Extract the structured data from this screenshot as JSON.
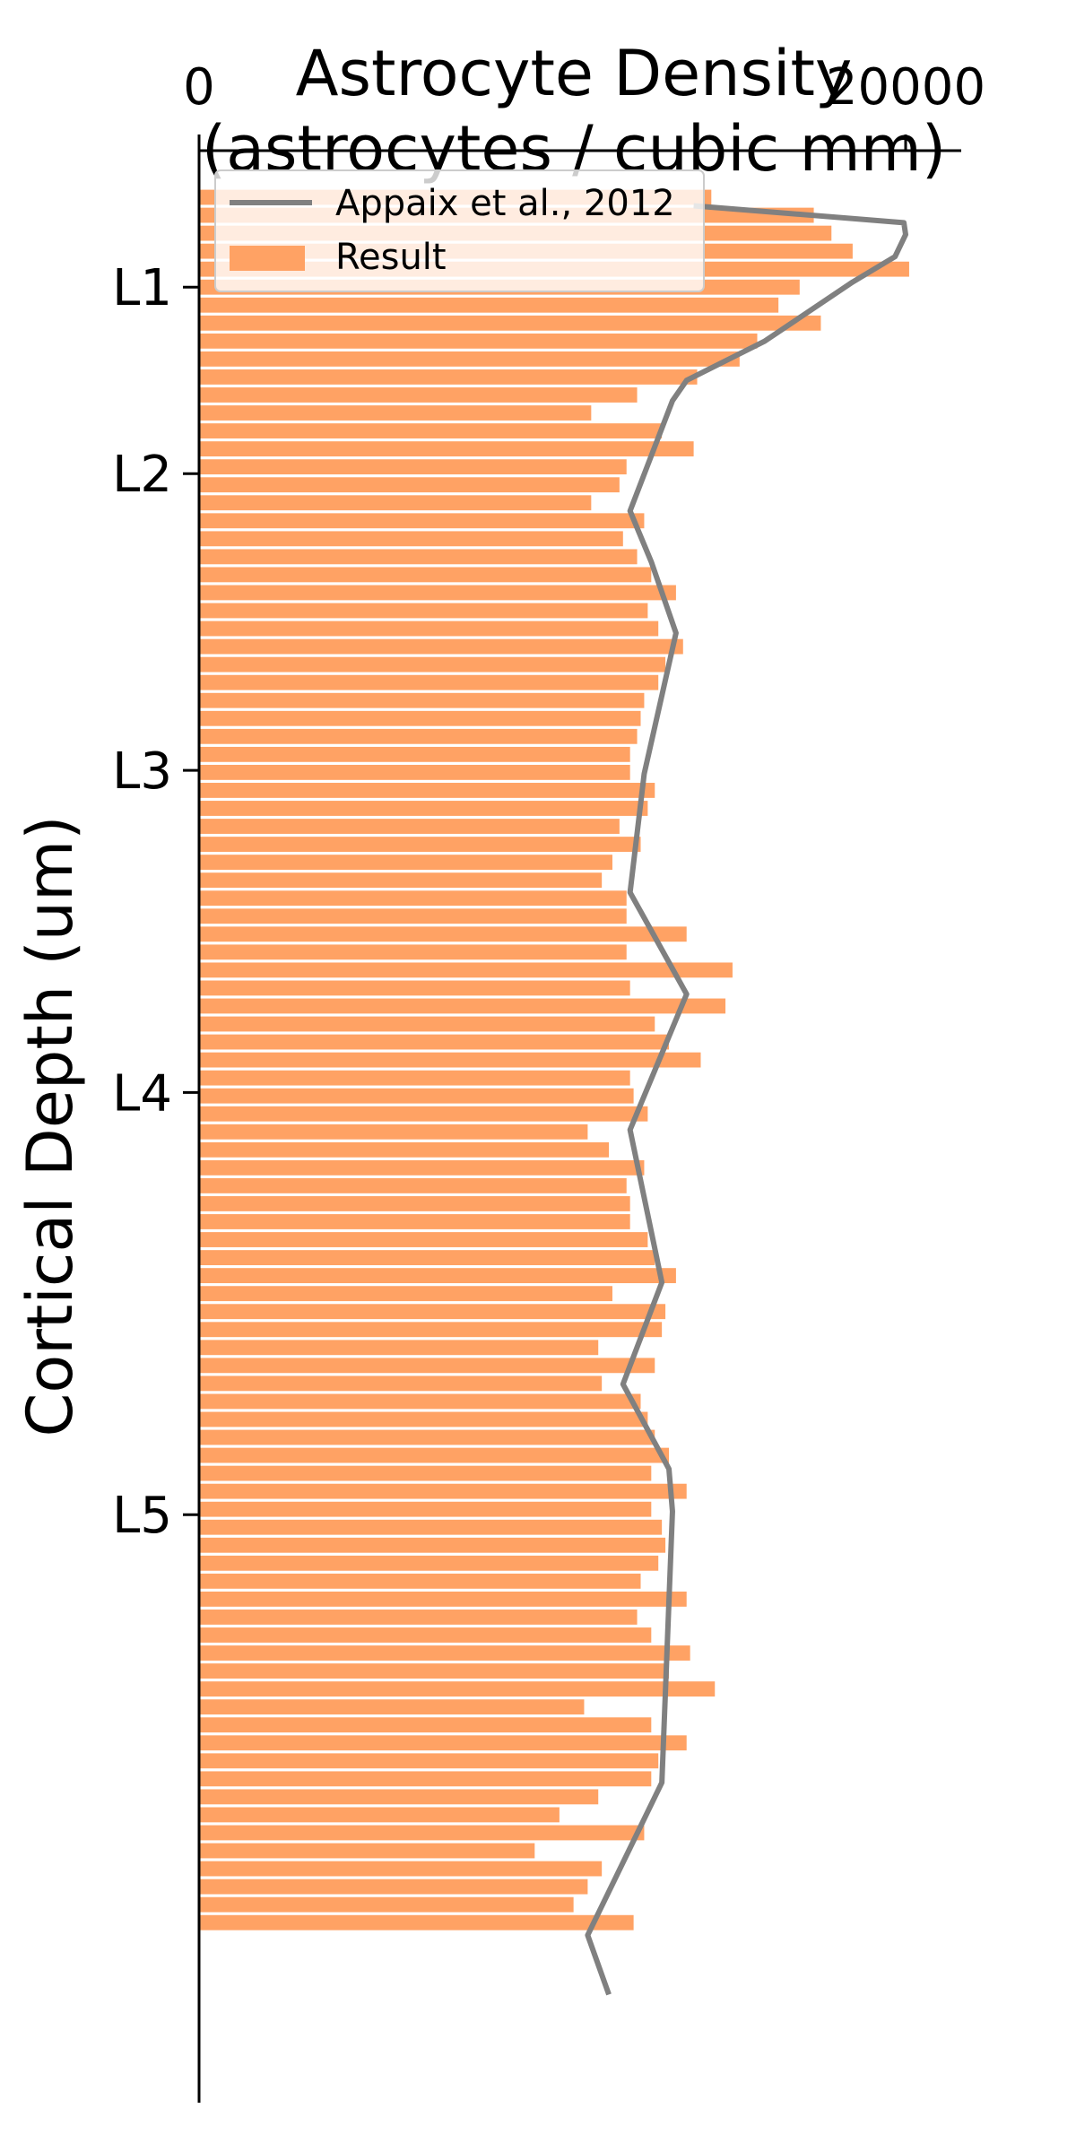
{
  "colors": {
    "bar": "#FFA264",
    "line": "#808080",
    "axis": "#000000"
  },
  "chart_data": {
    "type": "bar",
    "orientation": "horizontal",
    "title_line1": "Astrocyte Density",
    "title_line2": "(astrocytes / cubic mm)",
    "ylabel": "Cortical Depth (um)",
    "x_ticks": [
      {
        "value": 0,
        "label": "0"
      },
      {
        "value": 20000,
        "label": "20000"
      }
    ],
    "y_ticks": [
      {
        "value": 53,
        "label": "L1"
      },
      {
        "value": 163,
        "label": "L2"
      },
      {
        "value": 338,
        "label": "L3"
      },
      {
        "value": 528,
        "label": "L4"
      },
      {
        "value": 777,
        "label": "L5"
      }
    ],
    "xlim": [
      0,
      20000
    ],
    "ylim": [
      0,
      1100
    ],
    "y_inverted": true,
    "x_axis_position": "top",
    "legend_position": "top-left",
    "legend": [
      {
        "label": "Appaix et al., 2012",
        "kind": "line"
      },
      {
        "label": "Result",
        "kind": "patch"
      }
    ],
    "series": [
      {
        "name": "Result",
        "kind": "bar",
        "bar_height": 10.6,
        "depths": [
          0,
          10.6,
          21.2,
          31.8,
          42.4,
          53,
          63.6,
          74.2,
          84.8,
          95.4,
          106,
          116.6,
          127.2,
          137.8,
          148.4,
          159,
          169.6,
          180.2,
          190.8,
          201.4,
          212,
          222.6,
          233.2,
          243.8,
          254.4,
          265,
          275.6,
          286.2,
          296.8,
          307.4,
          318,
          328.6,
          339.2,
          349.8,
          360.4,
          371,
          381.6,
          392.2,
          402.8,
          413.4,
          424,
          434.6,
          445.2,
          455.8,
          466.4,
          477,
          487.6,
          498.2,
          508.8,
          519.4,
          530,
          540.6,
          551.2,
          561.8,
          572.4,
          583,
          593.6,
          604.2,
          614.8,
          625.4,
          636,
          646.6,
          657.2,
          667.8,
          678.4,
          689,
          699.6,
          710.2,
          720.8,
          731.4,
          742,
          752.6,
          763.2,
          773.8,
          784.4,
          795,
          805.6,
          816.2,
          826.8,
          837.4,
          848,
          858.6,
          869.2,
          879.8,
          890.4,
          901,
          911.6,
          922.2,
          932.8,
          943.4,
          954,
          964.6,
          975.2,
          985.8,
          996.4,
          1007,
          1017.6,
          1028.2,
          1038.8
        ],
        "values": [
          14500,
          17400,
          17900,
          18500,
          20100,
          17000,
          16400,
          17600,
          15800,
          15300,
          14100,
          12400,
          11100,
          13100,
          14000,
          12100,
          11900,
          11100,
          12600,
          12000,
          12400,
          12800,
          13500,
          12700,
          13000,
          13700,
          13200,
          13000,
          12600,
          12500,
          12400,
          12200,
          12200,
          12900,
          12700,
          11900,
          12500,
          11700,
          11400,
          12100,
          12100,
          13800,
          12100,
          15100,
          12200,
          14900,
          12900,
          13300,
          14200,
          12200,
          12300,
          12700,
          11000,
          11600,
          12600,
          12100,
          12200,
          12200,
          12700,
          12900,
          13500,
          11700,
          13200,
          13100,
          11300,
          12900,
          11400,
          12500,
          12700,
          12900,
          13300,
          12800,
          13800,
          12800,
          13100,
          13200,
          13000,
          12500,
          13800,
          12400,
          12800,
          13900,
          13300,
          14600,
          10900,
          12800,
          13800,
          13000,
          12800,
          11300,
          10200,
          12600,
          9500,
          11400,
          11000,
          10600,
          12300
        ]
      },
      {
        "name": "Appaix et al., 2012",
        "kind": "line",
        "points": [
          [
            14000,
            5
          ],
          [
            19950,
            15
          ],
          [
            20000,
            22
          ],
          [
            19700,
            35
          ],
          [
            18500,
            50
          ],
          [
            16000,
            85
          ],
          [
            13800,
            108
          ],
          [
            13400,
            120
          ],
          [
            12200,
            185
          ],
          [
            12800,
            215
          ],
          [
            13500,
            257
          ],
          [
            12600,
            340
          ],
          [
            12200,
            410
          ],
          [
            13800,
            470
          ],
          [
            13200,
            500
          ],
          [
            12200,
            550
          ],
          [
            13100,
            640
          ],
          [
            12000,
            700
          ],
          [
            13300,
            750
          ],
          [
            13400,
            775
          ],
          [
            13100,
            935
          ],
          [
            11000,
            1025
          ],
          [
            11600,
            1060
          ]
        ]
      }
    ]
  }
}
